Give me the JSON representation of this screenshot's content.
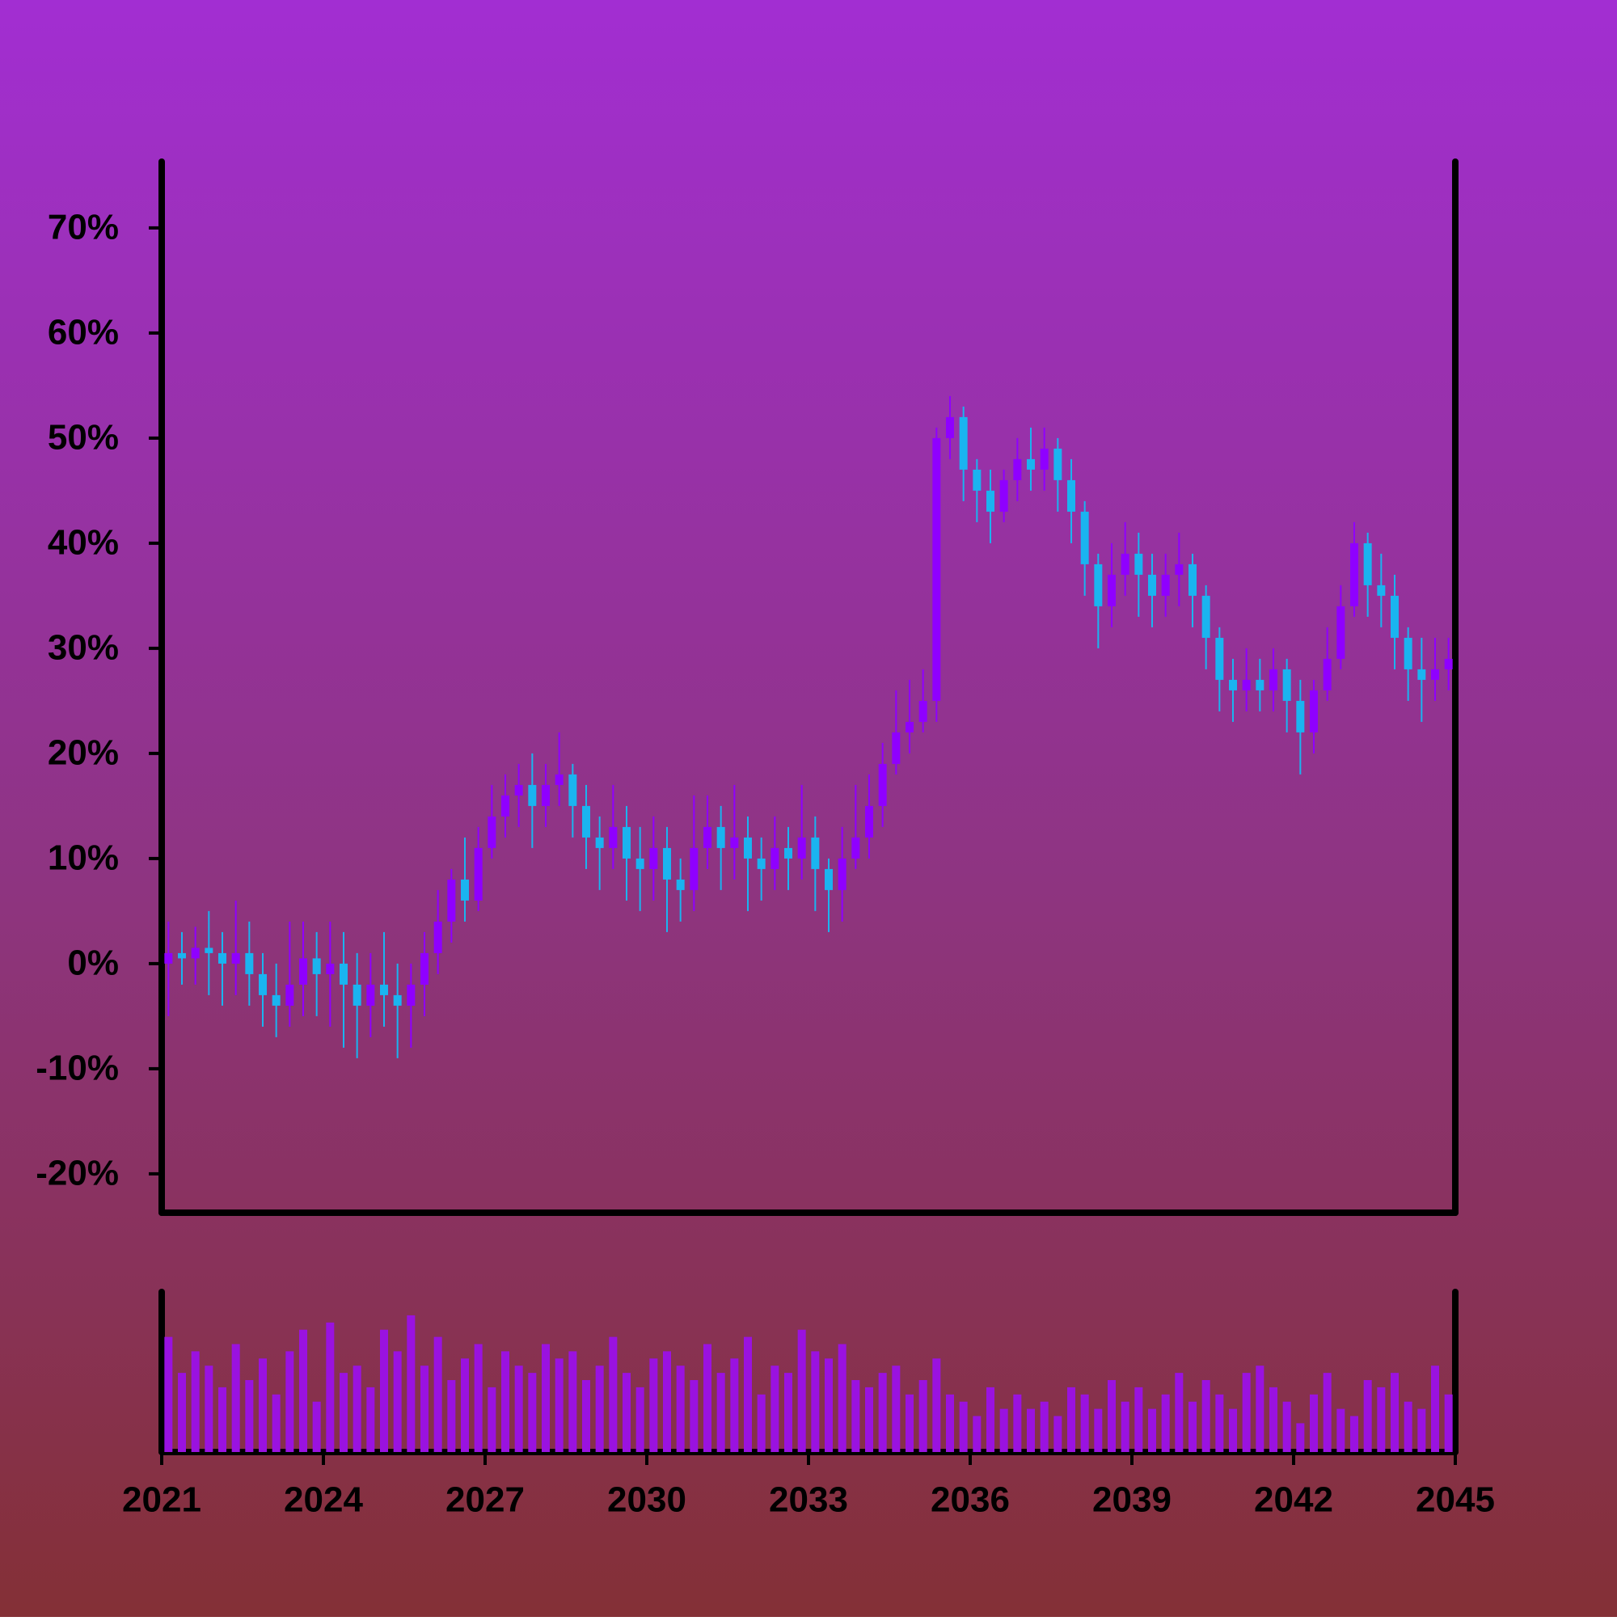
{
  "chart_data": {
    "type": "candlestick",
    "x": [
      2021.125,
      2021.375,
      2021.625,
      2021.875,
      2022.125,
      2022.375,
      2022.625,
      2022.875,
      2023.125,
      2023.375,
      2023.625,
      2023.875,
      2024.125,
      2024.375,
      2024.625,
      2024.875,
      2025.125,
      2025.375,
      2025.625,
      2025.875,
      2026.125,
      2026.375,
      2026.625,
      2026.875,
      2027.125,
      2027.375,
      2027.625,
      2027.875,
      2028.125,
      2028.375,
      2028.625,
      2028.875,
      2029.125,
      2029.375,
      2029.625,
      2029.875,
      2030.125,
      2030.375,
      2030.625,
      2030.875,
      2031.125,
      2031.375,
      2031.625,
      2031.875,
      2032.125,
      2032.375,
      2032.625,
      2032.875,
      2033.125,
      2033.375,
      2033.625,
      2033.875,
      2034.125,
      2034.375,
      2034.625,
      2034.875,
      2035.125,
      2035.375,
      2035.625,
      2035.875,
      2036.125,
      2036.375,
      2036.625,
      2036.875,
      2037.125,
      2037.375,
      2037.625,
      2037.875,
      2038.125,
      2038.375,
      2038.625,
      2038.875,
      2039.125,
      2039.375,
      2039.625,
      2039.875,
      2040.125,
      2040.375,
      2040.625,
      2040.875,
      2041.125,
      2041.375,
      2041.625,
      2041.875,
      2042.125,
      2042.375,
      2042.625,
      2042.875,
      2043.125,
      2043.375,
      2043.625,
      2043.875,
      2044.125,
      2044.375,
      2044.625,
      2044.875
    ],
    "open": [
      0,
      1,
      0.5,
      1.5,
      1,
      0,
      1,
      -1,
      -3,
      -4,
      -2,
      0.5,
      -1,
      0,
      -2,
      -4,
      -2,
      -3,
      -4,
      -2,
      1,
      4,
      8,
      6,
      11,
      14,
      16,
      17,
      15,
      17,
      18,
      15,
      12,
      11,
      13,
      10,
      9,
      11,
      8,
      7,
      11,
      13,
      11,
      12,
      10,
      9,
      11,
      10,
      12,
      9,
      7,
      10,
      12,
      15,
      19,
      22,
      23,
      25,
      50,
      52,
      47,
      45,
      43,
      46,
      48,
      47,
      49,
      46,
      43,
      38,
      34,
      37,
      39,
      37,
      35,
      37,
      38,
      35,
      31,
      27,
      26,
      27,
      26,
      28,
      25,
      22,
      26,
      29,
      34,
      40,
      36,
      35,
      31,
      28,
      27,
      28
    ],
    "high": [
      4,
      3,
      3.5,
      5,
      3,
      6,
      4,
      1,
      0,
      4,
      4,
      3,
      4,
      3,
      1,
      1,
      3,
      0,
      0,
      3,
      7,
      9,
      12,
      13,
      17,
      18,
      19,
      20,
      19,
      22,
      19,
      17,
      14,
      17,
      15,
      13,
      14,
      13,
      10,
      16,
      16,
      15,
      17,
      14,
      12,
      14,
      13,
      17,
      14,
      10,
      13,
      17,
      18,
      21,
      26,
      27,
      28,
      51,
      54,
      53,
      48,
      47,
      47,
      50,
      51,
      51,
      50,
      48,
      44,
      39,
      40,
      42,
      41,
      39,
      39,
      41,
      39,
      36,
      32,
      29,
      30,
      29,
      30,
      29,
      27,
      27,
      32,
      36,
      42,
      41,
      39,
      37,
      32,
      31,
      31,
      31
    ],
    "low": [
      -5,
      -2,
      -2,
      -3,
      -4,
      -3,
      -4,
      -6,
      -7,
      -6,
      -5,
      -5,
      -6,
      -8,
      -9,
      -7,
      -6,
      -9,
      -8,
      -5,
      -1,
      2,
      4,
      5,
      10,
      12,
      13,
      11,
      13,
      15,
      12,
      9,
      7,
      9,
      6,
      5,
      6,
      3,
      4,
      5,
      9,
      7,
      8,
      5,
      6,
      7,
      7,
      8,
      5,
      3,
      4,
      9,
      10,
      13,
      18,
      20,
      22,
      23,
      48,
      44,
      42,
      40,
      42,
      44,
      45,
      45,
      43,
      40,
      35,
      30,
      32,
      35,
      33,
      32,
      33,
      34,
      32,
      28,
      24,
      23,
      24,
      24,
      24,
      22,
      18,
      20,
      25,
      28,
      33,
      33,
      32,
      28,
      25,
      23,
      25,
      26
    ],
    "close": [
      1,
      0.5,
      1.5,
      1,
      0,
      1,
      -1,
      -3,
      -4,
      -2,
      0.5,
      -1,
      0,
      -2,
      -4,
      -2,
      -3,
      -4,
      -2,
      1,
      4,
      8,
      6,
      11,
      14,
      16,
      17,
      15,
      17,
      18,
      15,
      12,
      11,
      13,
      10,
      9,
      11,
      8,
      7,
      11,
      13,
      11,
      12,
      10,
      9,
      11,
      10,
      12,
      9,
      7,
      10,
      12,
      15,
      19,
      22,
      23,
      25,
      50,
      52,
      47,
      45,
      43,
      46,
      48,
      47,
      49,
      46,
      43,
      38,
      34,
      37,
      39,
      37,
      35,
      37,
      38,
      35,
      31,
      27,
      26,
      27,
      26,
      28,
      25,
      22,
      26,
      29,
      34,
      40,
      36,
      35,
      31,
      28,
      27,
      28,
      29
    ],
    "volume": [
      80,
      55,
      70,
      60,
      45,
      75,
      50,
      65,
      40,
      70,
      85,
      35,
      90,
      55,
      60,
      45,
      85,
      70,
      95,
      60,
      80,
      50,
      65,
      75,
      45,
      70,
      60,
      55,
      75,
      65,
      70,
      50,
      60,
      80,
      55,
      45,
      65,
      70,
      60,
      50,
      75,
      55,
      65,
      80,
      40,
      60,
      55,
      85,
      70,
      65,
      75,
      50,
      45,
      55,
      60,
      40,
      50,
      65,
      40,
      35,
      25,
      45,
      30,
      40,
      30,
      35,
      25,
      45,
      40,
      30,
      50,
      35,
      45,
      30,
      40,
      55,
      35,
      50,
      40,
      30,
      55,
      60,
      45,
      35,
      20,
      40,
      55,
      30,
      25,
      50,
      45,
      55,
      35,
      30,
      60,
      40
    ],
    "up_color": "#8f00ff",
    "down_color": "#1ab4f0",
    "volume_color": "#9a12e0",
    "xlim": [
      2021,
      2045
    ],
    "xticks": [
      2021,
      2024,
      2027,
      2030,
      2033,
      2036,
      2039,
      2042,
      2045
    ],
    "ylim": [
      -23.7,
      76.3
    ],
    "yticks": [
      {
        "value": -20,
        "label": "-20%"
      },
      {
        "value": -10,
        "label": "-10%"
      },
      {
        "value": 0,
        "label": "0%"
      },
      {
        "value": 10,
        "label": "10%"
      },
      {
        "value": 20,
        "label": "20%"
      },
      {
        "value": 30,
        "label": "30%"
      },
      {
        "value": 40,
        "label": "40%"
      },
      {
        "value": 50,
        "label": "50%"
      },
      {
        "value": 60,
        "label": "60%"
      },
      {
        "value": 70,
        "label": "70%"
      }
    ],
    "volume_ylim": [
      0,
      100
    ]
  }
}
